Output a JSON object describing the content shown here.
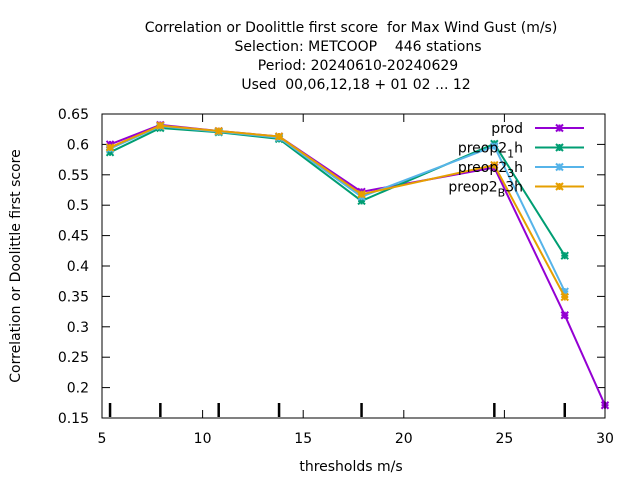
{
  "chart_data": {
    "type": "line",
    "title_lines": [
      "Correlation or Doolittle first score  for Max Wind Gust (m/s)",
      "Selection: METCOOP    446 stations",
      "Period: 20240610-20240629",
      "Used  00,06,12,18 + 01 02 ... 12"
    ],
    "xlabel": "thresholds m/s",
    "ylabel": "Correlation or Doolittle first score",
    "xlim": [
      5,
      30
    ],
    "ylim": [
      0.15,
      0.65
    ],
    "xticks": [
      5,
      10,
      15,
      20,
      25,
      30
    ],
    "yticks": [
      0.15,
      0.2,
      0.25,
      0.3,
      0.35,
      0.4,
      0.45,
      0.5,
      0.55,
      0.6,
      0.65
    ],
    "threshold_marks": [
      5.4,
      7.9,
      10.8,
      13.8,
      17.9,
      24.5,
      28.0
    ],
    "legend_position": "top-right",
    "series": [
      {
        "name": "prod",
        "color": "#9400d3",
        "x": [
          5.4,
          7.9,
          10.8,
          13.8,
          17.9,
          24.5,
          28.0,
          30.0
        ],
        "y": [
          0.6,
          0.632,
          0.622,
          0.613,
          0.522,
          0.562,
          0.319,
          0.171
        ]
      },
      {
        "name": "preop2_1h",
        "legend_main": "preop2",
        "legend_sub": "1",
        "legend_tail": "h",
        "color": "#009e73",
        "x": [
          5.4,
          7.9,
          10.8,
          13.8,
          17.9,
          24.5,
          28.0
        ],
        "y": [
          0.587,
          0.627,
          0.62,
          0.609,
          0.507,
          0.601,
          0.417
        ]
      },
      {
        "name": "preop2_3h",
        "legend_main": "preop2",
        "legend_sub": "3",
        "legend_tail": "h",
        "color": "#56b4e9",
        "x": [
          5.4,
          7.9,
          10.8,
          13.8,
          17.9,
          24.5,
          28.0
        ],
        "y": [
          0.593,
          0.63,
          0.621,
          0.611,
          0.514,
          0.597,
          0.358
        ]
      },
      {
        "name": "preop2_B3h",
        "legend_main": "preop2",
        "legend_sub": "B",
        "legend_tail": "3h",
        "color": "#e69f00",
        "x": [
          5.4,
          7.9,
          10.8,
          13.8,
          17.9,
          24.5,
          28.0
        ],
        "y": [
          0.595,
          0.631,
          0.622,
          0.613,
          0.518,
          0.566,
          0.349
        ]
      }
    ]
  }
}
